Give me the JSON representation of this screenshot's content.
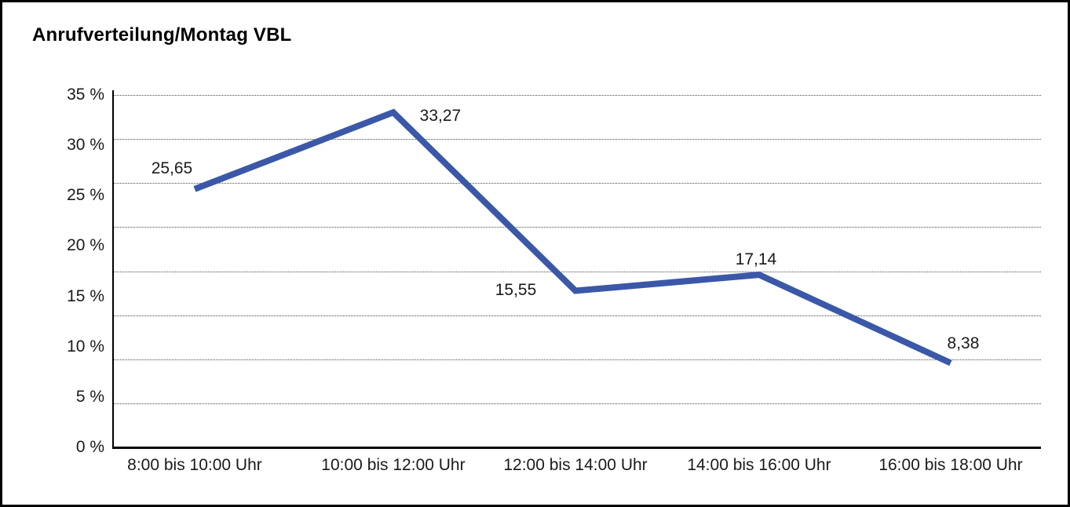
{
  "chart_data": {
    "type": "line",
    "title": "Anrufverteilung/Montag VBL",
    "categories": [
      "8:00 bis 10:00 Uhr",
      "10:00 bis 12:00 Uhr",
      "12:00 bis 14:00 Uhr",
      "14:00 bis 16:00 Uhr",
      "16:00 bis 18:00 Uhr"
    ],
    "values": [
      25.65,
      33.27,
      15.55,
      17.14,
      8.38
    ],
    "value_labels": [
      "25,65",
      "33,27",
      "15,55",
      "17,14",
      "8,38"
    ],
    "y_tick_labels": [
      "35 %",
      "30 %",
      "25 %",
      "20 %",
      "15 %",
      "10 %",
      "5 %",
      "0 %"
    ],
    "ylim": [
      0,
      35
    ],
    "xlabel": "",
    "ylabel": "",
    "legend": "none",
    "grid": "horizontal-dotted",
    "line_color": "#3b58a8",
    "axis_color": "#000000",
    "grid_color": "#4a4a4a",
    "text_color": "#1a1a1a",
    "background_color": "#ffffff"
  }
}
